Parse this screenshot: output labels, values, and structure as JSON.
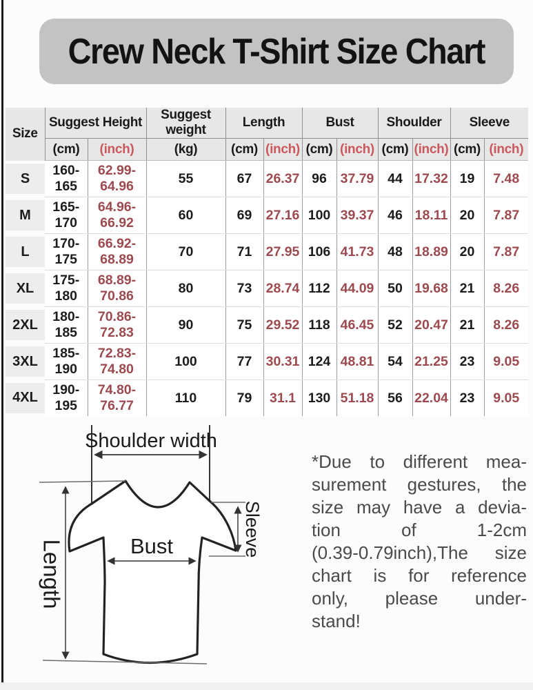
{
  "title": {
    "text": "Crew Neck T-Shirt Size Chart",
    "bg_color": "#c3c3c3",
    "text_color": "#131313"
  },
  "table": {
    "size_header": "Size",
    "groups": [
      {
        "label": "Suggest Height",
        "span": 2
      },
      {
        "label": "Suggest weight",
        "span": 1
      },
      {
        "label": "Length",
        "span": 2
      },
      {
        "label": "Bust",
        "span": 2
      },
      {
        "label": "Shoulder",
        "span": 2
      },
      {
        "label": "Sleeve",
        "span": 2
      }
    ],
    "units": [
      {
        "label": "(cm)",
        "inch": false
      },
      {
        "label": "(inch)",
        "inch": true
      },
      {
        "label": "(kg)",
        "inch": false
      },
      {
        "label": "(cm)",
        "inch": false
      },
      {
        "label": "(inch)",
        "inch": true
      },
      {
        "label": "(cm)",
        "inch": false
      },
      {
        "label": "(inch)",
        "inch": true
      },
      {
        "label": "(cm)",
        "inch": false
      },
      {
        "label": "(inch)",
        "inch": true
      },
      {
        "label": "(cm)",
        "inch": false
      },
      {
        "label": "(inch)",
        "inch": true
      }
    ],
    "header_inch_color": "#cb585d",
    "body_inch_color": "#9c4a50",
    "header_bg_color": "#e7e7e7",
    "size_cell_bg_color": "#ededed"
  },
  "chart_data": {
    "type": "table",
    "title": "Crew Neck T-Shirt Size Chart",
    "columns": [
      "Size",
      "Suggest Height (cm)",
      "Suggest Height (inch)",
      "Suggest weight (kg)",
      "Length (cm)",
      "Length (inch)",
      "Bust (cm)",
      "Bust (inch)",
      "Shoulder (cm)",
      "Shoulder (inch)",
      "Sleeve (cm)",
      "Sleeve (inch)"
    ],
    "rows": [
      [
        "S",
        "160-165",
        "62.99-64.96",
        "55",
        "67",
        "26.37",
        "96",
        "37.79",
        "44",
        "17.32",
        "19",
        "7.48"
      ],
      [
        "M",
        "165-170",
        "64.96-66.92",
        "60",
        "69",
        "27.16",
        "100",
        "39.37",
        "46",
        "18.11",
        "20",
        "7.87"
      ],
      [
        "L",
        "170-175",
        "66.92-68.89",
        "70",
        "71",
        "27.95",
        "106",
        "41.73",
        "48",
        "18.89",
        "20",
        "7.87"
      ],
      [
        "XL",
        "175-180",
        "68.89-70.86",
        "80",
        "73",
        "28.74",
        "112",
        "44.09",
        "50",
        "19.68",
        "21",
        "8.26"
      ],
      [
        "2XL",
        "180-185",
        "70.86-72.83",
        "90",
        "75",
        "29.52",
        "118",
        "46.45",
        "52",
        "20.47",
        "21",
        "8.26"
      ],
      [
        "3XL",
        "185-190",
        "72.83-74.80",
        "100",
        "77",
        "30.31",
        "124",
        "48.81",
        "54",
        "21.25",
        "23",
        "9.05"
      ],
      [
        "4XL",
        "190-195",
        "74.80-76.77",
        "110",
        "79",
        "31.1",
        "130",
        "51.18",
        "56",
        "22.04",
        "23",
        "9.05"
      ]
    ]
  },
  "diagram": {
    "labels": {
      "shoulder_width": "Shoulder width",
      "bust": "Bust",
      "length": "Length",
      "sleeve": "Sleeve"
    }
  },
  "note": {
    "text": "*Due to different mea-\nsurement gestures, the\nsize may have a devia-\ntion of 1-2cm\n(0.39-0.79inch),The size\nchart is for reference\nonly, please under-\nstand!"
  }
}
